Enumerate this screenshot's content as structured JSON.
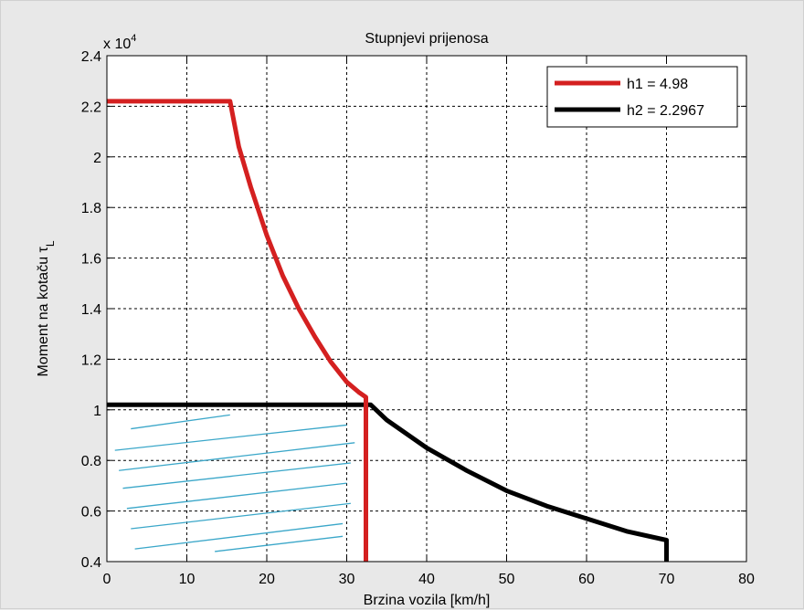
{
  "chart_data": {
    "type": "line",
    "title": "Stupnjevi prijenosa",
    "xlabel": "Brzina vozila [km/h]",
    "ylabel_main": "Moment na kotaču τ",
    "ylabel_sub": "L",
    "y_exponent_prefix": "x 10",
    "y_exponent_power": "4",
    "y_scale_factor": 10000,
    "xlim": [
      0,
      80
    ],
    "ylim": [
      4000,
      24000
    ],
    "x_ticks": [
      0,
      10,
      20,
      30,
      40,
      50,
      60,
      70,
      80
    ],
    "x_tick_labels": [
      "0",
      "10",
      "20",
      "30",
      "40",
      "50",
      "60",
      "70",
      "80"
    ],
    "y_ticks": [
      4000,
      6000,
      8000,
      10000,
      12000,
      14000,
      16000,
      18000,
      20000,
      22000,
      24000
    ],
    "y_tick_labels": [
      "0.4",
      "0.6",
      "0.8",
      "1",
      "1.2",
      "1.4",
      "1.6",
      "1.8",
      "2",
      "2.2",
      "2.4"
    ],
    "grid": true,
    "legend_position": "top-right",
    "series": [
      {
        "name": "h1 = 4.98",
        "color": "#d42020",
        "x": [
          0,
          15.4,
          16.5,
          18,
          20,
          22,
          24,
          26,
          28,
          30,
          31.5,
          32.4,
          32.4,
          32.4
        ],
        "y": [
          22200,
          22200,
          20400,
          18800,
          16900,
          15300,
          14000,
          12900,
          11900,
          11100,
          10700,
          10500,
          10200,
          4000
        ]
      },
      {
        "name": "h2 = 2.2967",
        "color": "#000000",
        "x": [
          0,
          33,
          35,
          40,
          45,
          50,
          55,
          60,
          65,
          70,
          70
        ],
        "y": [
          10200,
          10200,
          9600,
          8500,
          7600,
          6800,
          6200,
          5700,
          5200,
          4850,
          4000
        ]
      }
    ],
    "annotation_color": "#3ba7c9",
    "hatch_segments": [
      {
        "x1": 3.0,
        "y1": 9250,
        "x2": 15.4,
        "y2": 9800
      },
      {
        "x1": 1.0,
        "y1": 8400,
        "x2": 30.0,
        "y2": 9400
      },
      {
        "x1": 1.5,
        "y1": 7600,
        "x2": 31.0,
        "y2": 8700
      },
      {
        "x1": 2.0,
        "y1": 6900,
        "x2": 30.5,
        "y2": 7900
      },
      {
        "x1": 2.5,
        "y1": 6100,
        "x2": 30.0,
        "y2": 7100
      },
      {
        "x1": 3.0,
        "y1": 5300,
        "x2": 30.5,
        "y2": 6300
      },
      {
        "x1": 3.5,
        "y1": 4500,
        "x2": 29.5,
        "y2": 5500
      },
      {
        "x1": 13.5,
        "y1": 4400,
        "x2": 29.5,
        "y2": 5000
      }
    ]
  }
}
